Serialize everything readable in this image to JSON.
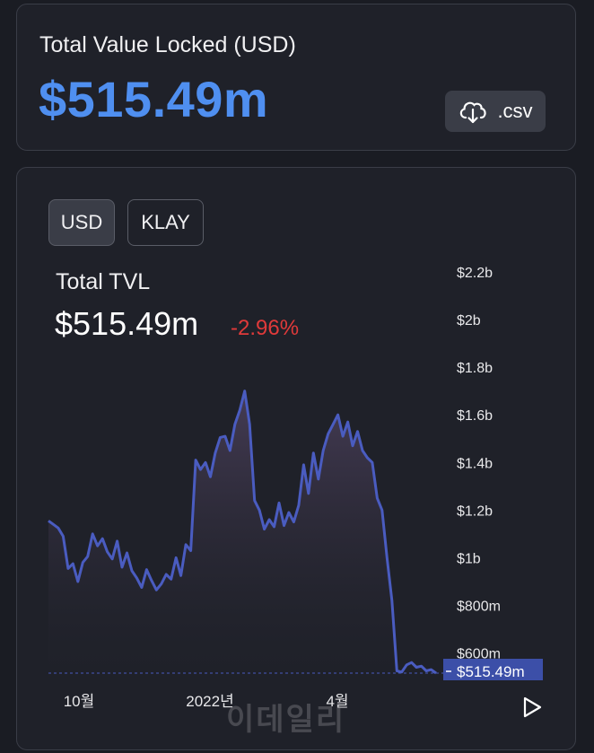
{
  "tvl_card": {
    "label": "Total Value Locked (USD)",
    "value": "$515.49m",
    "csv_label": ".csv",
    "csv_icon": "cloud-download-icon"
  },
  "toggles": [
    {
      "label": "USD",
      "selected": true
    },
    {
      "label": "KLAY",
      "selected": false
    }
  ],
  "summary": {
    "label": "Total TVL",
    "value": "$515.49m",
    "change": "-2.96%"
  },
  "watermark": "이데일리",
  "colors": {
    "accent": "#4f8ff0",
    "line": "#4a5cc0",
    "negative": "#e03a3a",
    "current_badge": "#3c4fa8"
  },
  "chart_data": {
    "type": "area",
    "title": "Total TVL",
    "ylim": [
      515.49,
      2200
    ],
    "y_ticks": [
      {
        "label": "$2.2b",
        "value": 2200
      },
      {
        "label": "$2b",
        "value": 2000
      },
      {
        "label": "$1.8b",
        "value": 1800
      },
      {
        "label": "$1.6b",
        "value": 1600
      },
      {
        "label": "$1.4b",
        "value": 1400
      },
      {
        "label": "$1.2b",
        "value": 1200
      },
      {
        "label": "$1b",
        "value": 1000
      },
      {
        "label": "$800m",
        "value": 800
      },
      {
        "label": "$600m",
        "value": 600
      }
    ],
    "x_ticks": [
      "10월",
      "2022년",
      "4월"
    ],
    "current_label": "$515.49m",
    "current_value": 515.49,
    "grid": false,
    "values": [
      1155,
      1140,
      1125,
      1090,
      955,
      975,
      900,
      980,
      1005,
      1100,
      1050,
      1080,
      1025,
      995,
      1070,
      960,
      1020,
      945,
      915,
      875,
      950,
      905,
      865,
      890,
      930,
      910,
      1000,
      925,
      1055,
      1030,
      1410,
      1370,
      1400,
      1340,
      1440,
      1505,
      1510,
      1450,
      1560,
      1620,
      1700,
      1560,
      1240,
      1200,
      1120,
      1160,
      1130,
      1230,
      1135,
      1190,
      1150,
      1220,
      1390,
      1270,
      1440,
      1330,
      1450,
      1520,
      1560,
      1600,
      1510,
      1570,
      1470,
      1530,
      1450,
      1420,
      1400,
      1250,
      1200,
      1000,
      820,
      525,
      520,
      550,
      560,
      540,
      545,
      525,
      530,
      515.49
    ]
  }
}
